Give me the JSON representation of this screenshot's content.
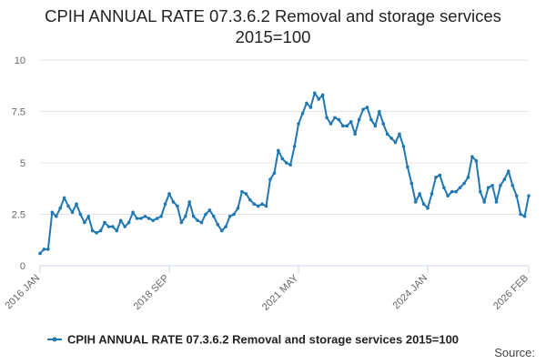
{
  "chart_data": {
    "type": "line",
    "title_line1": "CPIH ANNUAL RATE 07.3.6.2 Removal and storage services",
    "title_line2": "2015=100",
    "series": [
      {
        "name": "CPIH ANNUAL RATE 07.3.6.2 Removal and storage services 2015=100",
        "color": "#1f77b4",
        "start": "2016 JAN",
        "values": [
          0.6,
          0.8,
          0.8,
          2.6,
          2.4,
          2.8,
          3.3,
          2.9,
          2.6,
          3.0,
          2.5,
          2.1,
          2.4,
          1.7,
          1.6,
          1.7,
          2.1,
          1.9,
          1.9,
          1.7,
          2.2,
          1.9,
          2.1,
          2.6,
          2.3,
          2.3,
          2.4,
          2.3,
          2.2,
          2.3,
          2.4,
          3.0,
          3.5,
          3.1,
          2.9,
          2.1,
          2.4,
          3.1,
          2.4,
          2.2,
          2.1,
          2.5,
          2.7,
          2.4,
          2.0,
          1.7,
          1.9,
          2.4,
          2.5,
          2.8,
          3.6,
          3.5,
          3.2,
          3.0,
          2.9,
          3.0,
          2.9,
          4.2,
          4.5,
          5.6,
          5.2,
          5.0,
          4.9,
          5.8,
          6.9,
          7.4,
          7.9,
          7.7,
          8.4,
          8.1,
          8.3,
          7.2,
          6.9,
          7.2,
          7.1,
          6.8,
          6.8,
          7.0,
          6.4,
          7.1,
          7.6,
          7.7,
          7.1,
          6.8,
          7.5,
          6.9,
          6.4,
          6.2,
          6.0,
          6.4,
          5.8,
          4.8,
          4.0,
          3.1,
          3.5,
          3.0,
          2.8,
          3.5,
          4.3,
          4.4,
          3.8,
          3.4,
          3.6,
          3.6,
          3.8,
          4.0,
          4.3,
          5.3,
          5.1,
          3.6,
          3.1,
          3.8,
          3.9,
          3.1,
          3.9,
          4.2,
          4.6,
          3.9,
          3.4,
          2.5,
          2.4,
          3.4
        ]
      }
    ],
    "x_ticks": [
      "2016 JAN",
      "2018 SEP",
      "2021 MAY",
      "2024 JAN",
      "2026 FEB"
    ],
    "y_ticks": [
      "0",
      "2.5",
      "5",
      "7.5",
      "10"
    ],
    "ylim": [
      0,
      10
    ],
    "grid": true,
    "legend_position": "bottom",
    "source_label": "Source:"
  }
}
